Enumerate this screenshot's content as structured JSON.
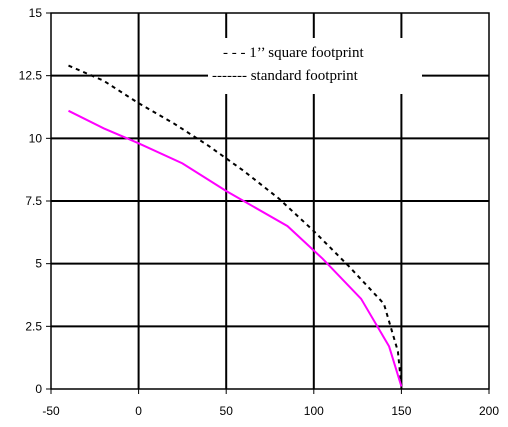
{
  "chart_data": {
    "type": "line",
    "title": "",
    "xlabel": "",
    "ylabel": "",
    "xlim": [
      -50,
      200
    ],
    "ylim": [
      0,
      15
    ],
    "x_ticks": [
      "-50",
      "0",
      "50",
      "100",
      "150",
      "200"
    ],
    "y_ticks": [
      "0",
      "2.5",
      "5",
      "7.5",
      "10",
      "12.5",
      "15"
    ],
    "grid": true,
    "legend_placement": "top-right",
    "legend": [
      "- - - 1’’ square footprint",
      "------- standard footprint"
    ],
    "series": [
      {
        "name": "1’’ square footprint",
        "color": "#000000",
        "style": "dashed",
        "x": [
          -40,
          -20,
          0,
          20,
          40,
          60,
          80,
          100,
          120,
          140,
          148,
          150
        ],
        "y": [
          12.9,
          12.3,
          11.4,
          10.6,
          9.7,
          8.7,
          7.6,
          6.3,
          4.9,
          3.4,
          1.5,
          0.1
        ]
      },
      {
        "name": "standard footprint",
        "color": "#ff00ff",
        "style": "solid",
        "x": [
          -40,
          -20,
          0,
          25,
          50,
          85,
          105,
          127,
          143,
          150
        ],
        "y": [
          11.1,
          10.4,
          9.8,
          9.0,
          7.9,
          6.5,
          5.2,
          3.6,
          1.7,
          0.1
        ]
      }
    ]
  }
}
